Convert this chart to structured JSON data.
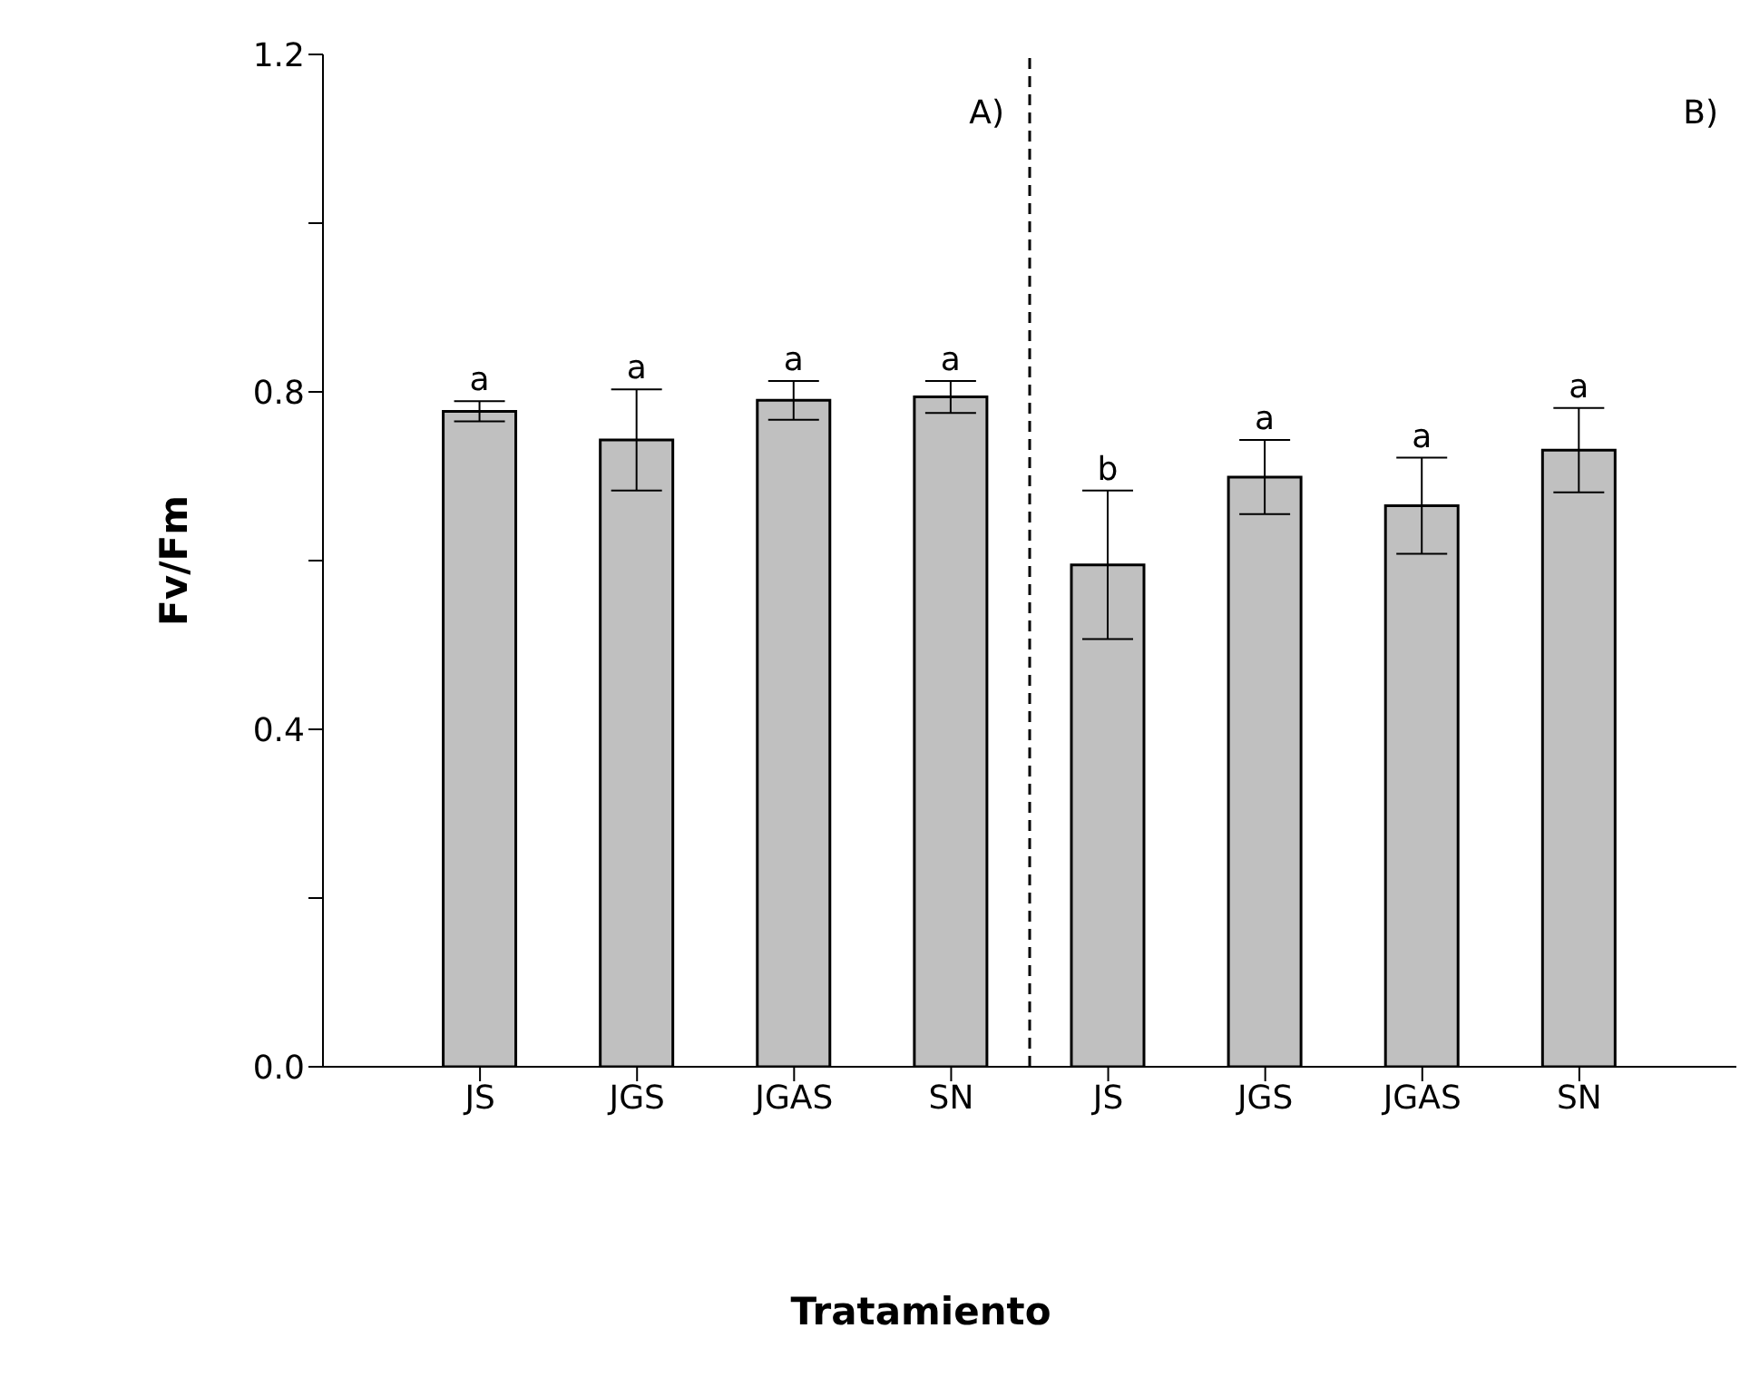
{
  "chart_data": {
    "type": "bar",
    "xlabel": "Tratamiento",
    "ylabel": "Fv/Fm",
    "categories": [
      "JS",
      "JGS",
      "JGAS",
      "SN",
      "JS",
      "JGS",
      "JGAS",
      "SN"
    ],
    "values": [
      0.777,
      0.743,
      0.79,
      0.794,
      0.595,
      0.699,
      0.665,
      0.731
    ],
    "errors": [
      0.012,
      0.06,
      0.023,
      0.019,
      0.088,
      0.044,
      0.057,
      0.05
    ],
    "value_labels": [
      "a",
      "a",
      "a",
      "a",
      "b",
      "a",
      "a",
      "a"
    ],
    "color": "#c0c0c0",
    "ylim": [
      0,
      1.2
    ],
    "yticks": [
      {
        "value": 0,
        "label": "0.0"
      },
      {
        "value": 0.2,
        "label": null
      },
      0.4,
      {
        "value": 0.6,
        "label": null
      },
      0.8,
      {
        "value": 1.0,
        "label": null
      },
      1.2
    ],
    "annotations": [
      "A)",
      "B)"
    ]
  }
}
